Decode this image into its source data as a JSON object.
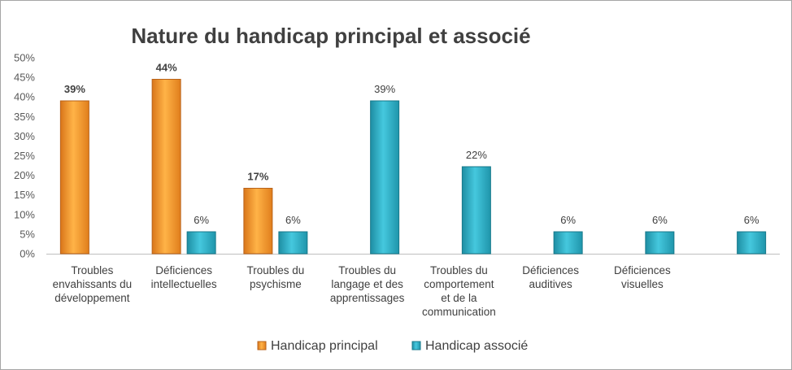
{
  "chart_data": {
    "type": "bar",
    "title": "Nature du handicap principal et associé",
    "xlabel": "",
    "ylabel": "",
    "ylim": [
      0,
      50
    ],
    "y_ticks": [
      "0%",
      "5%",
      "10%",
      "15%",
      "20%",
      "25%",
      "30%",
      "35%",
      "40%",
      "45%",
      "50%"
    ],
    "grid": false,
    "legend_position": "bottom",
    "categories": [
      [
        "Troubles",
        "envahissants du",
        "développement"
      ],
      [
        "Déficiences",
        "intellectuelles"
      ],
      [
        "Troubles du",
        "psychisme"
      ],
      [
        "Troubles du",
        "langage et des",
        "apprentissages"
      ],
      [
        "Troubles du",
        "comportement",
        "et de la",
        "communication"
      ],
      [
        "Déficiences",
        "auditives"
      ],
      [
        "Déficiences",
        "visuelles"
      ],
      [
        ""
      ]
    ],
    "series": [
      {
        "name": "Handicap principal",
        "color": "#f59a23",
        "values": [
          39,
          44.5,
          16.7,
          null,
          null,
          null,
          null,
          null
        ],
        "labels": [
          "39%",
          "44%",
          "17%",
          "",
          "",
          "",
          "",
          ""
        ],
        "labels_bold": true
      },
      {
        "name": "Handicap associé",
        "color": "#2fb5cc",
        "values": [
          null,
          5.6,
          5.6,
          39,
          22.2,
          5.6,
          5.6,
          5.6
        ],
        "labels": [
          "",
          "6%",
          "6%",
          "39%",
          "22%",
          "6%",
          "6%",
          "6%"
        ],
        "labels_bold": false
      }
    ]
  }
}
